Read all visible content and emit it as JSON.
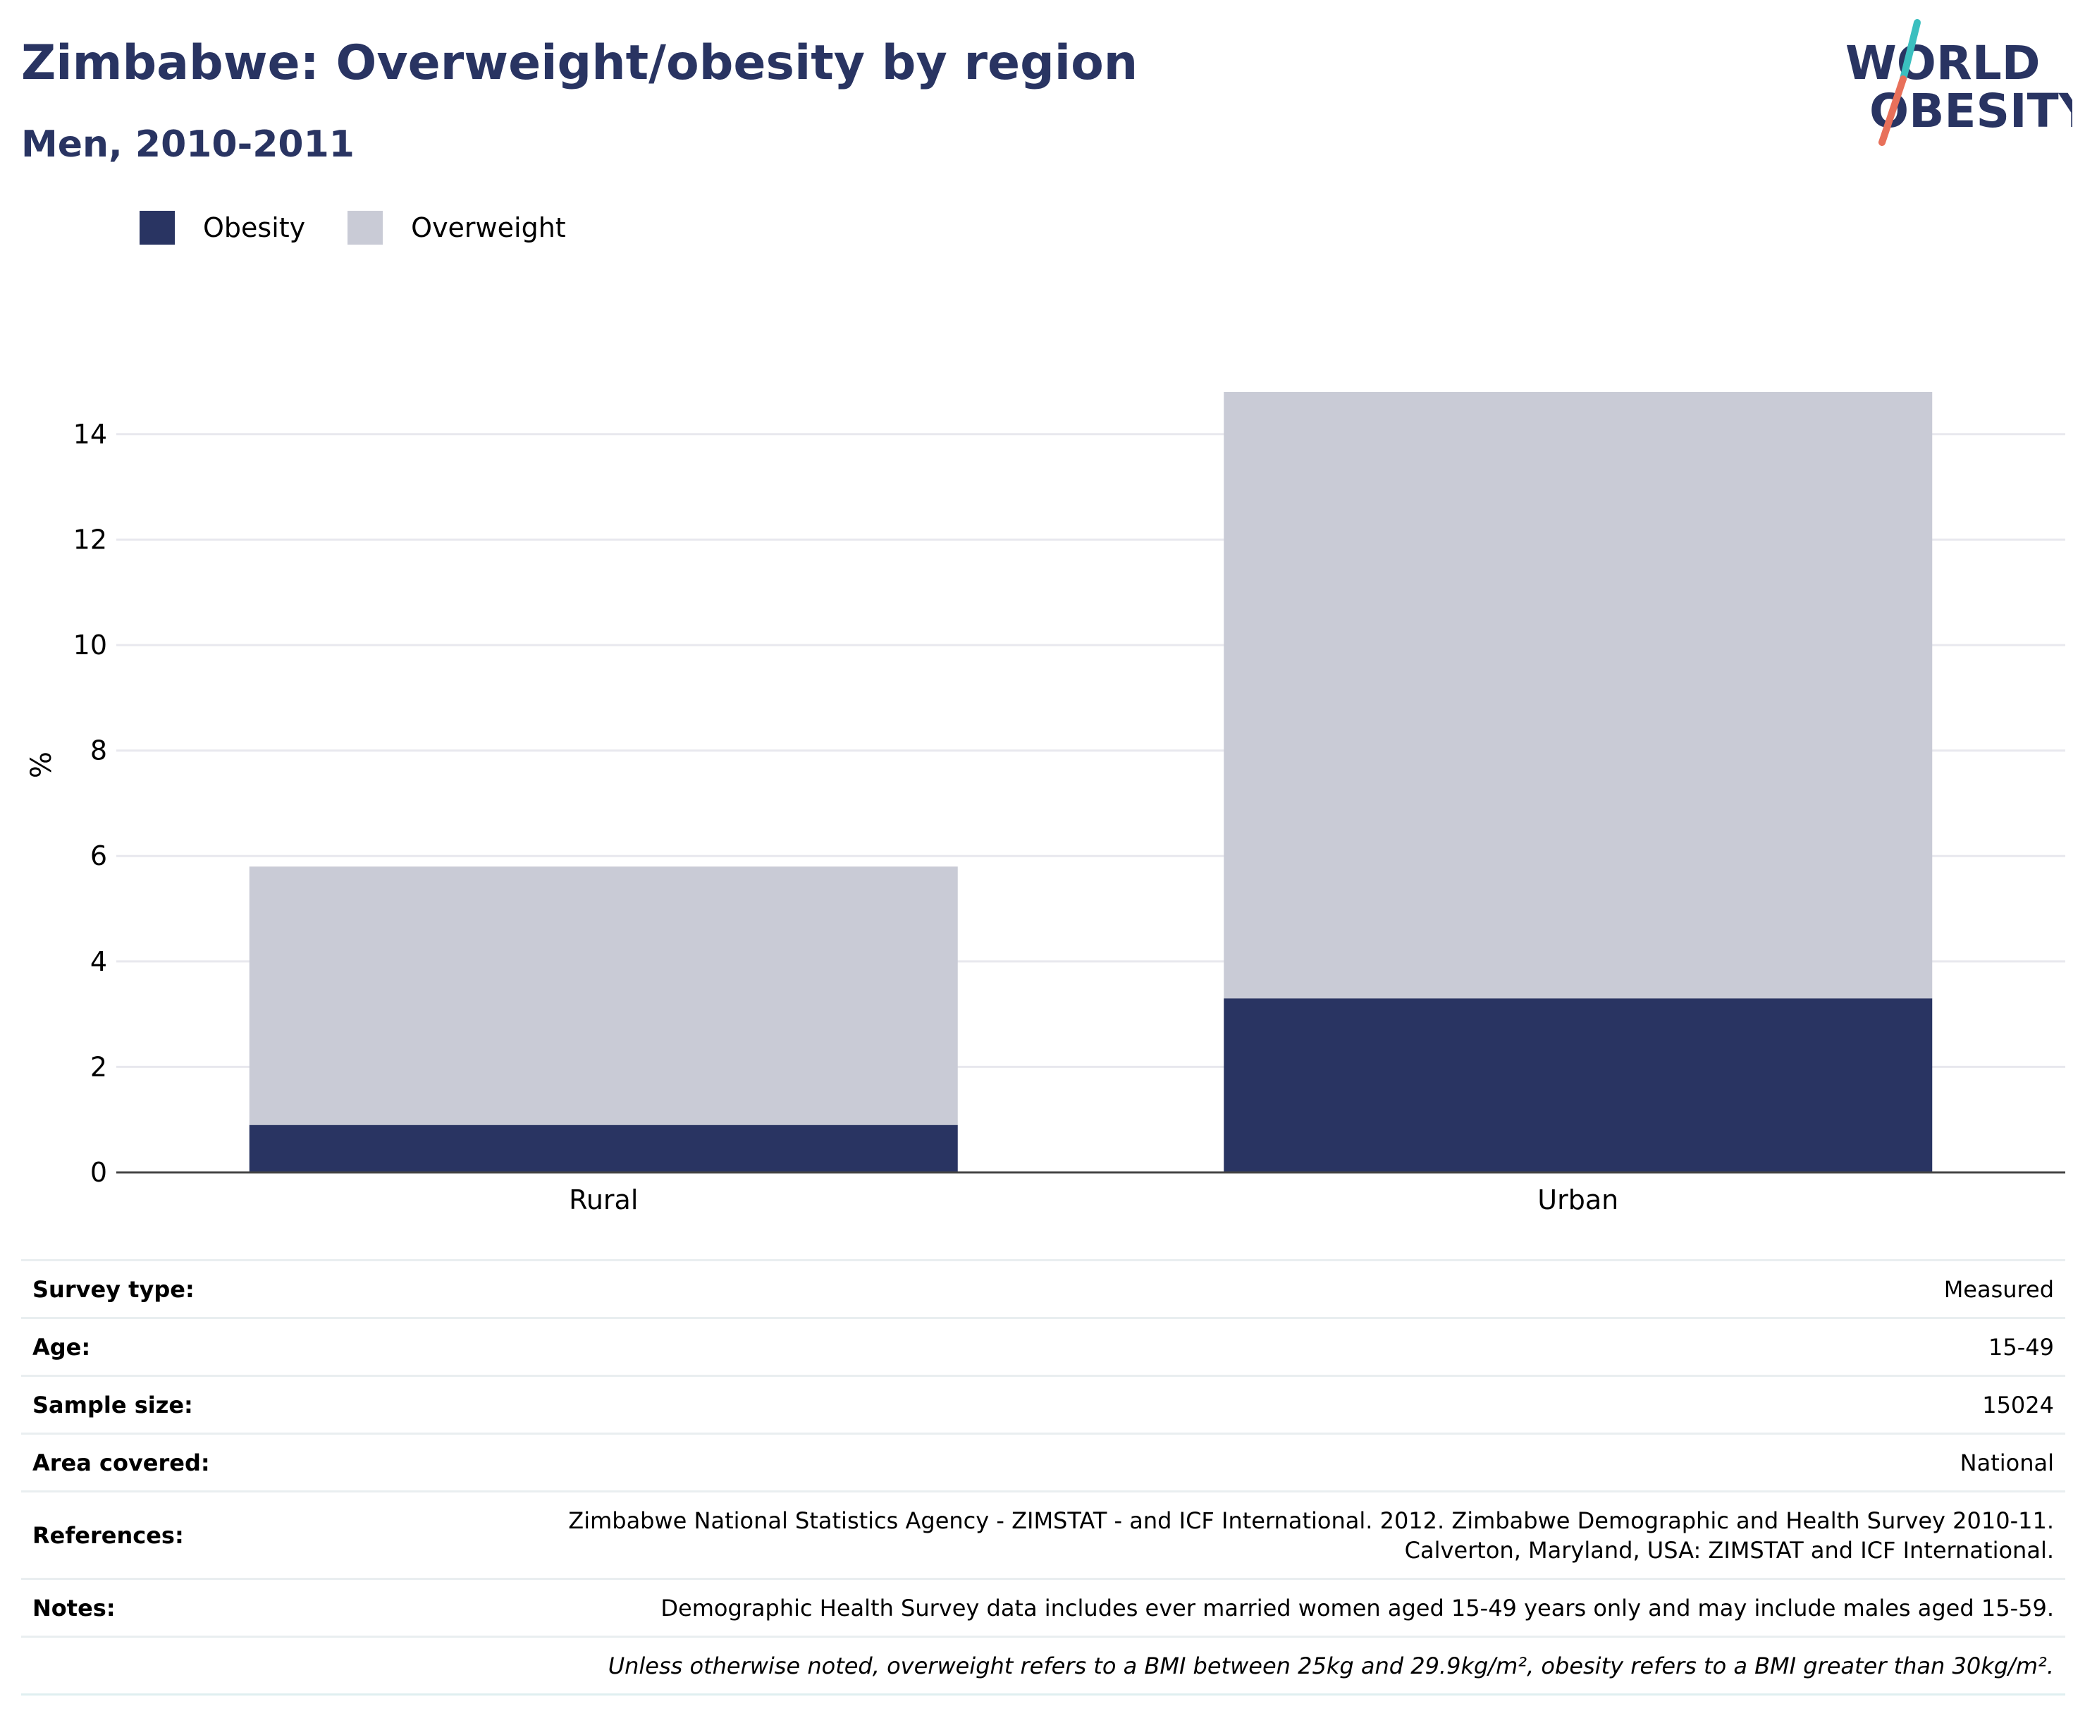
{
  "header": {
    "title": "Zimbabwe: Overweight/obesity by region",
    "subtitle": "Men, 2010-2011"
  },
  "logo": {
    "line1": "WORLD",
    "line2": "OBESITY",
    "colors": {
      "text": "#293462",
      "slash_top": "#3bbfbf",
      "slash_bottom": "#e8705a"
    }
  },
  "colors": {
    "obesity": "#293462",
    "overweight": "#c9cbd6",
    "grid": "#e8e8ee",
    "axis": "#444444"
  },
  "chart_data": {
    "type": "bar",
    "stacked": true,
    "categories": [
      "Rural",
      "Urban"
    ],
    "series": [
      {
        "name": "Obesity",
        "values": [
          0.9,
          3.3
        ]
      },
      {
        "name": "Overweight",
        "values": [
          4.9,
          11.5
        ]
      }
    ],
    "title": "Zimbabwe: Overweight/obesity by region",
    "subtitle": "Men, 2010-2011",
    "xlabel": "",
    "ylabel": "%",
    "ylim": [
      0,
      15
    ],
    "yticks": [
      0,
      2,
      4,
      6,
      8,
      10,
      12,
      14
    ],
    "grid": true,
    "legend": "top-left"
  },
  "info": {
    "rows": [
      {
        "key": "Survey type:",
        "value": "Measured"
      },
      {
        "key": "Age:",
        "value": "15-49"
      },
      {
        "key": "Sample size:",
        "value": "15024"
      },
      {
        "key": "Area covered:",
        "value": "National"
      },
      {
        "key": "References:",
        "value_line1": "Zimbabwe National Statistics Agency - ZIMSTAT - and ICF International. 2012. Zimbabwe Demographic and Health Survey 2010-11.",
        "value_line2": "Calverton, Maryland, USA: ZIMSTAT and ICF International."
      },
      {
        "key": "Notes:",
        "value": "Demographic Health Survey data includes ever married women aged 15-49 years only and may include males aged 15-59."
      }
    ],
    "footnote": "Unless otherwise noted, overweight refers to a BMI between 25kg and 29.9kg/m², obesity refers to a BMI greater than 30kg/m²."
  }
}
